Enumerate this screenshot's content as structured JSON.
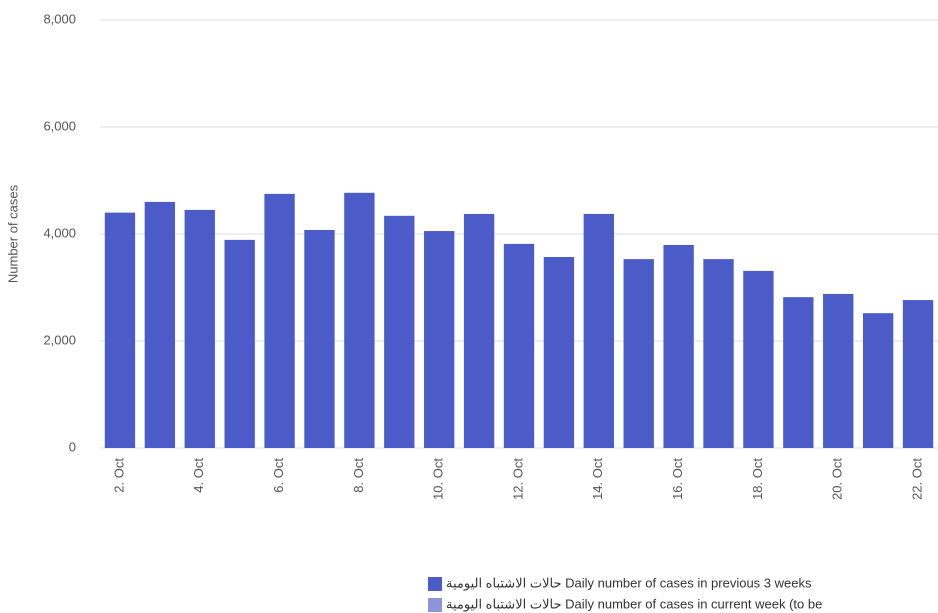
{
  "chart_data": {
    "type": "bar",
    "y_axis_label": "Number of cases",
    "categories": [
      "2. Oct",
      null,
      "4. Oct",
      null,
      "6. Oct",
      null,
      "8. Oct",
      null,
      "10. Oct",
      null,
      "12. Oct",
      null,
      "14. Oct",
      null,
      "16. Oct",
      null,
      "18. Oct",
      null,
      "20. Oct",
      null,
      "22. Oct"
    ],
    "series": [
      {
        "name": "حالات الاشتباه اليومية Daily number of cases in previous 3 weeks",
        "color": "#4b5bc7",
        "values": [
          4400,
          4600,
          4450,
          3890,
          4750,
          4075,
          4770,
          4340,
          4055,
          4375,
          3815,
          3570,
          4375,
          3530,
          3795,
          3530,
          3310,
          2820,
          2880,
          2520,
          2765
        ]
      },
      {
        "name": "حالات الاشتباه اليومية Daily number of cases in current week (to be",
        "color": "#8d94d8",
        "values": [
          null,
          null,
          null,
          null,
          null,
          null,
          null,
          null,
          null,
          null,
          null,
          null,
          null,
          null,
          null,
          null,
          null,
          null,
          null,
          null,
          null
        ]
      }
    ],
    "ylim": [
      0,
      8000
    ],
    "yticks": [
      0,
      {
        "value": 2000,
        "label": "2,000"
      },
      {
        "value": 4000,
        "label": "4,000"
      },
      {
        "value": 6000,
        "label": "6,000"
      },
      {
        "value": 8000,
        "label": "8,000"
      }
    ],
    "grid": true
  }
}
